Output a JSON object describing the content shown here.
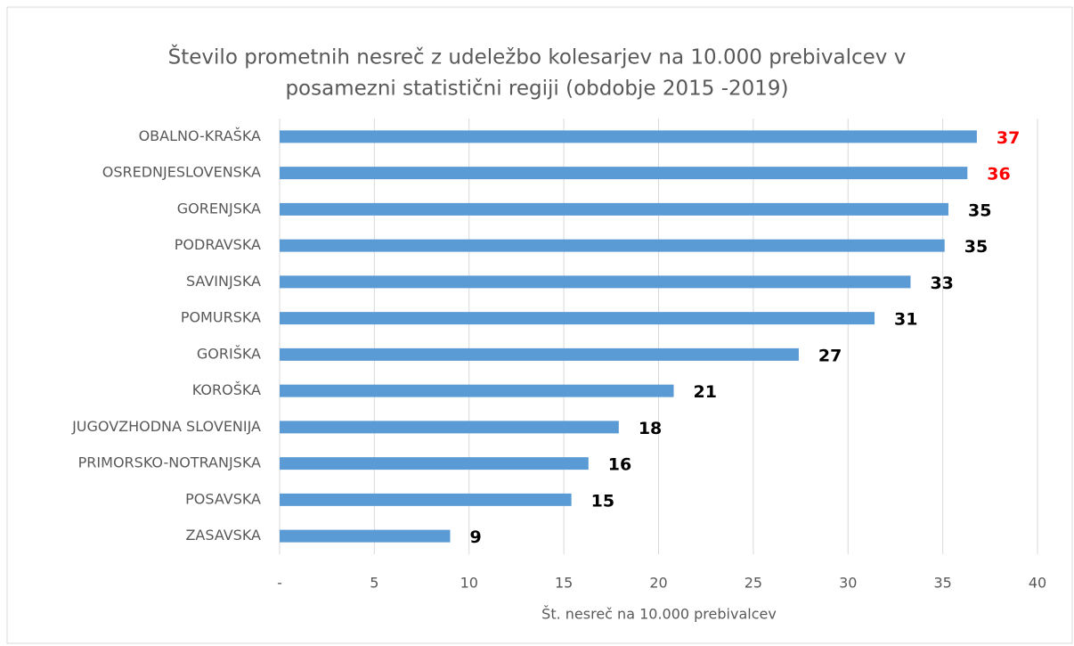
{
  "chart_data": {
    "type": "bar",
    "orientation": "horizontal",
    "title": [
      "Število prometnih nesreč z udeležbo kolesarjev na 10.000 prebivalcev v",
      "posamezni statistični regiji (obdobje 2015 -2019)"
    ],
    "xlabel": "Št. nesreč na 10.000 prebivalcev",
    "categories": [
      "OBALNO-KRAŠKA",
      "OSREDNJESLOVENSKA",
      "GORENJSKA",
      "PODRAVSKA",
      "SAVINJSKA",
      "POMURSKA",
      "GORIŠKA",
      "KOROŠKA",
      "JUGOVZHODNA SLOVENIJA",
      "PRIMORSKO-NOTRANJSKA",
      "POSAVSKA",
      "ZASAVSKA"
    ],
    "values": [
      36.8,
      36.3,
      35.3,
      35.1,
      33.3,
      31.4,
      27.4,
      20.8,
      17.9,
      16.3,
      15.4,
      9.0
    ],
    "value_labels": [
      "37",
      "36",
      "35",
      "35",
      "33",
      "31",
      "27",
      "21",
      "18",
      "16",
      "15",
      "9"
    ],
    "value_label_colors": [
      "#ff0000",
      "#ff0000",
      "#000000",
      "#000000",
      "#000000",
      "#000000",
      "#000000",
      "#000000",
      "#000000",
      "#000000",
      "#000000",
      "#000000"
    ],
    "color": "#5b9bd5",
    "xlim": [
      0,
      40
    ],
    "xticks": [
      {
        "value": 0,
        "label": "-"
      },
      5,
      10,
      15,
      20,
      25,
      30,
      35,
      40
    ],
    "grid": true
  }
}
